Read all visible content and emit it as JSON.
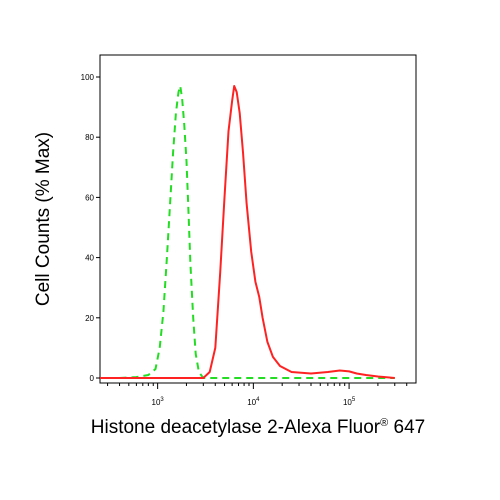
{
  "chart_data": {
    "type": "line",
    "title": "",
    "xlabel": "Histone deacetylase 2-Alexa Fluor",
    "xlabel_sup": "®",
    "xlabel_suffix": " 647",
    "ylabel": "Cell Counts (% Max)",
    "x_scale": "log",
    "xlim": [
      250,
      500000
    ],
    "ylim": [
      0,
      105
    ],
    "x_ticks": [
      {
        "base": "10",
        "exp": "3",
        "value": 1000
      },
      {
        "base": "10",
        "exp": "4",
        "value": 10000
      },
      {
        "base": "10",
        "exp": "5",
        "value": 100000
      }
    ],
    "y_ticks": [
      {
        "label": "0",
        "value": 0
      },
      {
        "label": "20",
        "value": 20
      },
      {
        "label": "40",
        "value": 40
      },
      {
        "label": "60",
        "value": 60
      },
      {
        "label": "80",
        "value": 80
      },
      {
        "label": "100",
        "value": 100
      }
    ],
    "grid": false,
    "legend": "none",
    "series": [
      {
        "color": "#22dd22",
        "dash": "dashed",
        "points": [
          [
            400,
            0
          ],
          [
            600,
            0.3
          ],
          [
            800,
            1
          ],
          [
            950,
            3
          ],
          [
            1050,
            10
          ],
          [
            1150,
            22
          ],
          [
            1250,
            40
          ],
          [
            1350,
            58
          ],
          [
            1450,
            75
          ],
          [
            1550,
            88
          ],
          [
            1650,
            95
          ],
          [
            1720,
            97
          ],
          [
            1800,
            93
          ],
          [
            1900,
            84
          ],
          [
            2000,
            72
          ],
          [
            2100,
            55
          ],
          [
            2200,
            38
          ],
          [
            2350,
            20
          ],
          [
            2500,
            8
          ],
          [
            2700,
            2
          ],
          [
            3000,
            0
          ],
          [
            4000,
            0
          ],
          [
            20000,
            0
          ],
          [
            300000,
            0
          ]
        ]
      },
      {
        "color": "#ff2222",
        "dash": "solid",
        "points": [
          [
            250,
            0
          ],
          [
            1500,
            0
          ],
          [
            3000,
            0
          ],
          [
            3500,
            2
          ],
          [
            4000,
            10
          ],
          [
            4500,
            35
          ],
          [
            5000,
            60
          ],
          [
            5500,
            82
          ],
          [
            6000,
            92
          ],
          [
            6300,
            97
          ],
          [
            6700,
            95
          ],
          [
            7200,
            88
          ],
          [
            7800,
            75
          ],
          [
            8500,
            58
          ],
          [
            9500,
            42
          ],
          [
            10500,
            32
          ],
          [
            11500,
            27
          ],
          [
            12500,
            20
          ],
          [
            14000,
            12
          ],
          [
            16000,
            7
          ],
          [
            19000,
            4
          ],
          [
            25000,
            2
          ],
          [
            40000,
            1.5
          ],
          [
            60000,
            2
          ],
          [
            80000,
            2.5
          ],
          [
            100000,
            2.2
          ],
          [
            120000,
            1.5
          ],
          [
            150000,
            1
          ],
          [
            200000,
            0.5
          ],
          [
            300000,
            0
          ]
        ]
      }
    ]
  }
}
